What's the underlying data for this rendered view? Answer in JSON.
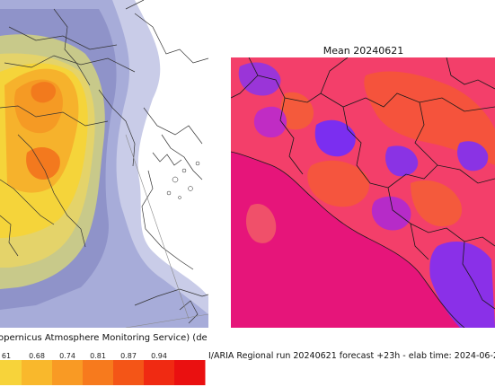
{
  "left_panel": {
    "caption": "opernicus Atmosphere Monitoring Service) (de",
    "colorbar": {
      "ticks": [
        "61",
        "0.68",
        "0.74",
        "0.81",
        "0.87",
        "0.94"
      ],
      "colors": [
        "#f7d33a",
        "#f9b82c",
        "#f99a24",
        "#f77a1d",
        "#f45517",
        "#f02a12",
        "#ea1010"
      ]
    }
  },
  "right_panel": {
    "title": "Mean 20240621",
    "caption": "I/ARIA Regional run 20240621 forecast +23h - elab time: 2024-06-2",
    "colors": {
      "sea": "#e6157a",
      "land": "#f33f6a",
      "hot": "#f5533c",
      "cool": "#7b2ef0",
      "mid": "#c02cc4"
    }
  }
}
